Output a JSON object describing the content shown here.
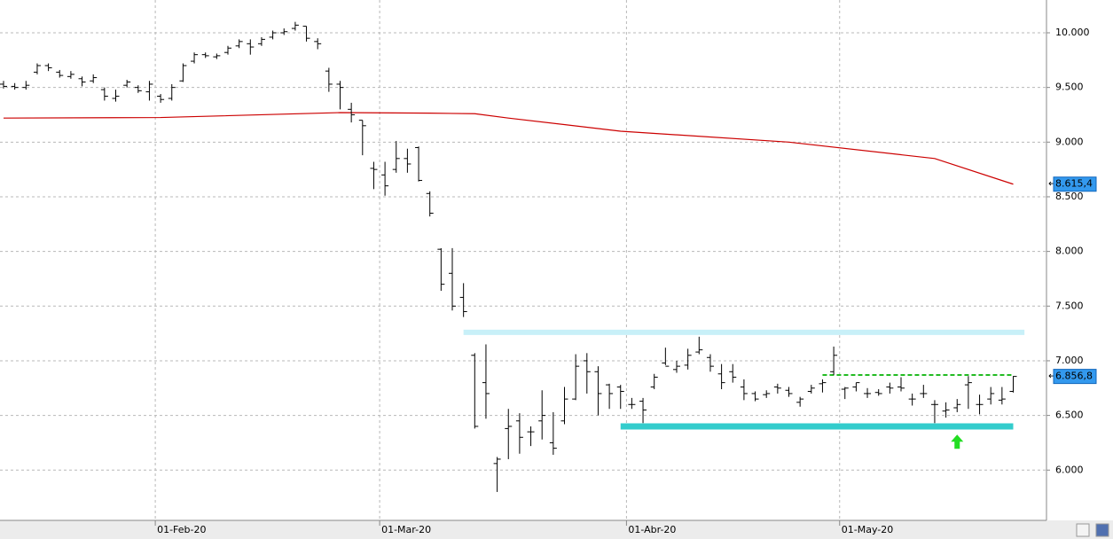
{
  "chart_data": {
    "type": "ohlc",
    "categories": [
      null,
      null,
      null,
      null,
      null,
      null,
      null,
      null,
      null,
      null,
      null,
      null,
      null,
      null,
      "01-Feb-20",
      null,
      null,
      null,
      null,
      null,
      null,
      null,
      null,
      null,
      null,
      null,
      null,
      null,
      null,
      null,
      null,
      null,
      null,
      null,
      "01-Mar-20",
      null,
      null,
      null,
      null,
      null,
      null,
      null,
      null,
      null,
      null,
      null,
      null,
      null,
      null,
      null,
      null,
      null,
      null,
      null,
      null,
      null,
      "01-Abr-20",
      null,
      null,
      null,
      null,
      null,
      null,
      null,
      null,
      null,
      null,
      null,
      null,
      null,
      null,
      null,
      null,
      null,
      null,
      "01-May-20",
      null,
      null,
      null,
      null,
      null,
      null,
      null,
      null,
      null,
      null,
      null,
      null,
      null,
      null,
      null
    ],
    "ylim": [
      5540,
      10300
    ],
    "yticks": [
      {
        "value": 6000,
        "label": "6.000"
      },
      {
        "value": 6500,
        "label": "6.500"
      },
      {
        "value": 7000,
        "label": "7.000"
      },
      {
        "value": 7500,
        "label": "7.500"
      },
      {
        "value": 8000,
        "label": "8.000"
      },
      {
        "value": 8500,
        "label": "8.500"
      },
      {
        "value": 9000,
        "label": "9.000"
      },
      {
        "value": 9500,
        "label": "9.500"
      },
      {
        "value": 10000,
        "label": "10.000"
      }
    ],
    "grid": true,
    "color": "#000000",
    "open": [
      9530,
      9510,
      9500,
      9640,
      9700,
      9640,
      9600,
      9580,
      9560,
      9480,
      9400,
      9520,
      9500,
      9460,
      9420,
      9400,
      9560,
      9740,
      9800,
      9780,
      9820,
      9880,
      9900,
      9900,
      9960,
      10000,
      10040,
      10060,
      9920,
      9650,
      9530,
      9300,
      9200,
      8760,
      8700,
      8750,
      8850,
      8950,
      8530,
      8020,
      7800,
      7580,
      7050,
      6800,
      6060,
      6380,
      6450,
      6350,
      6450,
      6250,
      6450,
      6650,
      7000,
      6900,
      6780,
      6760,
      6600,
      6630,
      6760,
      6980,
      6920,
      6960,
      7080,
      7030,
      6880,
      6900,
      6760,
      6700,
      6690,
      6760,
      6730,
      6620,
      6720,
      6790,
      6900,
      6740,
      6760,
      6700,
      6710,
      6760,
      6760,
      6650,
      6700,
      6600,
      6540,
      6570,
      6780,
      6600,
      6650,
      6640,
      6720
    ],
    "high": [
      9560,
      9540,
      9560,
      9720,
      9720,
      9660,
      9650,
      9600,
      9620,
      9500,
      9480,
      9570,
      9520,
      9560,
      9440,
      9530,
      9720,
      9820,
      9820,
      9810,
      9880,
      9940,
      9940,
      9960,
      10020,
      10040,
      10100,
      10060,
      9950,
      9680,
      9560,
      9360,
      9200,
      8820,
      8820,
      9010,
      8940,
      8960,
      8550,
      8030,
      8030,
      7710,
      7070,
      7150,
      6120,
      6560,
      6520,
      6400,
      6730,
      6530,
      6760,
      7060,
      7070,
      6950,
      6790,
      6780,
      6660,
      6660,
      6880,
      7120,
      7000,
      7110,
      7220,
      7060,
      6970,
      6970,
      6830,
      6720,
      6730,
      6790,
      6760,
      6670,
      6780,
      6830,
      7130,
      6760,
      6800,
      6750,
      6740,
      6800,
      6850,
      6700,
      6780,
      6640,
      6620,
      6650,
      6860,
      6690,
      6760,
      6760,
      6860
    ],
    "low": [
      9490,
      9480,
      9480,
      9620,
      9650,
      9590,
      9580,
      9510,
      9540,
      9380,
      9370,
      9500,
      9450,
      9380,
      9360,
      9380,
      9550,
      9720,
      9770,
      9760,
      9800,
      9860,
      9800,
      9880,
      9940,
      9980,
      10020,
      9920,
      9850,
      9460,
      9300,
      9180,
      8880,
      8570,
      8510,
      8720,
      8720,
      8640,
      8320,
      7640,
      7460,
      7400,
      6380,
      6470,
      5800,
      6100,
      6150,
      6220,
      6280,
      6140,
      6420,
      6640,
      6700,
      6500,
      6560,
      6560,
      6560,
      6430,
      6740,
      6960,
      6890,
      6920,
      7060,
      6900,
      6740,
      6800,
      6640,
      6630,
      6660,
      6700,
      6670,
      6580,
      6700,
      6710,
      6870,
      6650,
      6720,
      6660,
      6680,
      6700,
      6720,
      6590,
      6660,
      6430,
      6480,
      6530,
      6560,
      6510,
      6600,
      6600,
      6710
    ],
    "close": [
      9510,
      9500,
      9520,
      9700,
      9680,
      9610,
      9620,
      9550,
      9590,
      9420,
      9420,
      9550,
      9470,
      9530,
      9390,
      9500,
      9700,
      9800,
      9790,
      9790,
      9860,
      9920,
      9870,
      9940,
      10000,
      10010,
      10070,
      9950,
      9900,
      9530,
      9500,
      9250,
      9150,
      8750,
      8600,
      8850,
      8800,
      8650,
      8350,
      7700,
      7500,
      7450,
      6400,
      6700,
      6100,
      6400,
      6300,
      6350,
      6500,
      6200,
      6650,
      6950,
      6900,
      6700,
      6700,
      6720,
      6600,
      6550,
      6850,
      6950,
      6950,
      7050,
      7100,
      6950,
      6800,
      6850,
      6700,
      6650,
      6700,
      6750,
      6700,
      6650,
      6750,
      6800,
      7050,
      6750,
      6800,
      6700,
      6700,
      6750,
      6750,
      6650,
      6700,
      6600,
      6550,
      6600,
      6800,
      6600,
      6700,
      6650,
      6856.8
    ],
    "close_label": "6.856,8",
    "moving_average": {
      "color": "#cc0000",
      "x": [
        0,
        14,
        30,
        38,
        42,
        45,
        55,
        70,
        83,
        90
      ],
      "values": [
        9220,
        9225,
        9270,
        9265,
        9260,
        9220,
        9100,
        9000,
        8850,
        8615.4
      ],
      "last_label": "8.615,4"
    },
    "levels": [
      {
        "value": 7260,
        "start": 41,
        "end": 91,
        "color": "#c8f0f8",
        "style": "solid"
      },
      {
        "value": 6400,
        "start": 55,
        "end": 90,
        "color": "#33cccc",
        "style": "solid"
      },
      {
        "value": 6870,
        "start": 73,
        "end": 90,
        "color": "#22bb22",
        "style": "dashed"
      }
    ],
    "arrow": {
      "index": 85,
      "value": 6260,
      "color": "#22dd22"
    }
  }
}
